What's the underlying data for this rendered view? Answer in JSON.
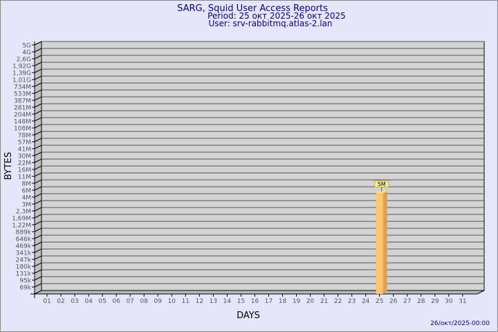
{
  "chart_data": {
    "type": "bar",
    "title": "SARG, Squid User Access Reports",
    "subtitle_period": "Period: 25 окт 2025-26 окт 2025",
    "subtitle_user": "User: srv-rabbitmq.atlas-2.lan",
    "xlabel": "DAYS",
    "ylabel": "BYTES",
    "footer": "26/окт/2025-00:00",
    "y_scale": "log",
    "y_tick_labels": [
      "5G",
      "4G",
      "2,6G",
      "1,92G",
      "1,39G",
      "1,01G",
      "734M",
      "533M",
      "387M",
      "281M",
      "204M",
      "148M",
      "108M",
      "78M",
      "57M",
      "41M",
      "30M",
      "22M",
      "16M",
      "11M",
      "8M",
      "6M",
      "4M",
      "3M",
      "2,3M",
      "1,69M",
      "1,22M",
      "889k",
      "646k",
      "469k",
      "341k",
      "247k",
      "180k",
      "131k",
      "95k",
      "69k"
    ],
    "categories": [
      "01",
      "02",
      "03",
      "04",
      "05",
      "06",
      "07",
      "08",
      "09",
      "10",
      "11",
      "12",
      "13",
      "14",
      "15",
      "16",
      "17",
      "18",
      "19",
      "20",
      "21",
      "22",
      "23",
      "24",
      "25",
      "26",
      "27",
      "28",
      "29",
      "30",
      "31"
    ],
    "bars": [
      {
        "day": "25",
        "value_bytes": 5000000,
        "label": "5M"
      }
    ],
    "grid": true,
    "colors": {
      "background": "#e6e6fa",
      "plot": "#d3d3d3",
      "bar_front": "#ffc56b",
      "bar_side": "#dda24d",
      "bar_top": "#ffe08f",
      "label_bg": "#f2f0a8",
      "title": "#00008b"
    }
  }
}
